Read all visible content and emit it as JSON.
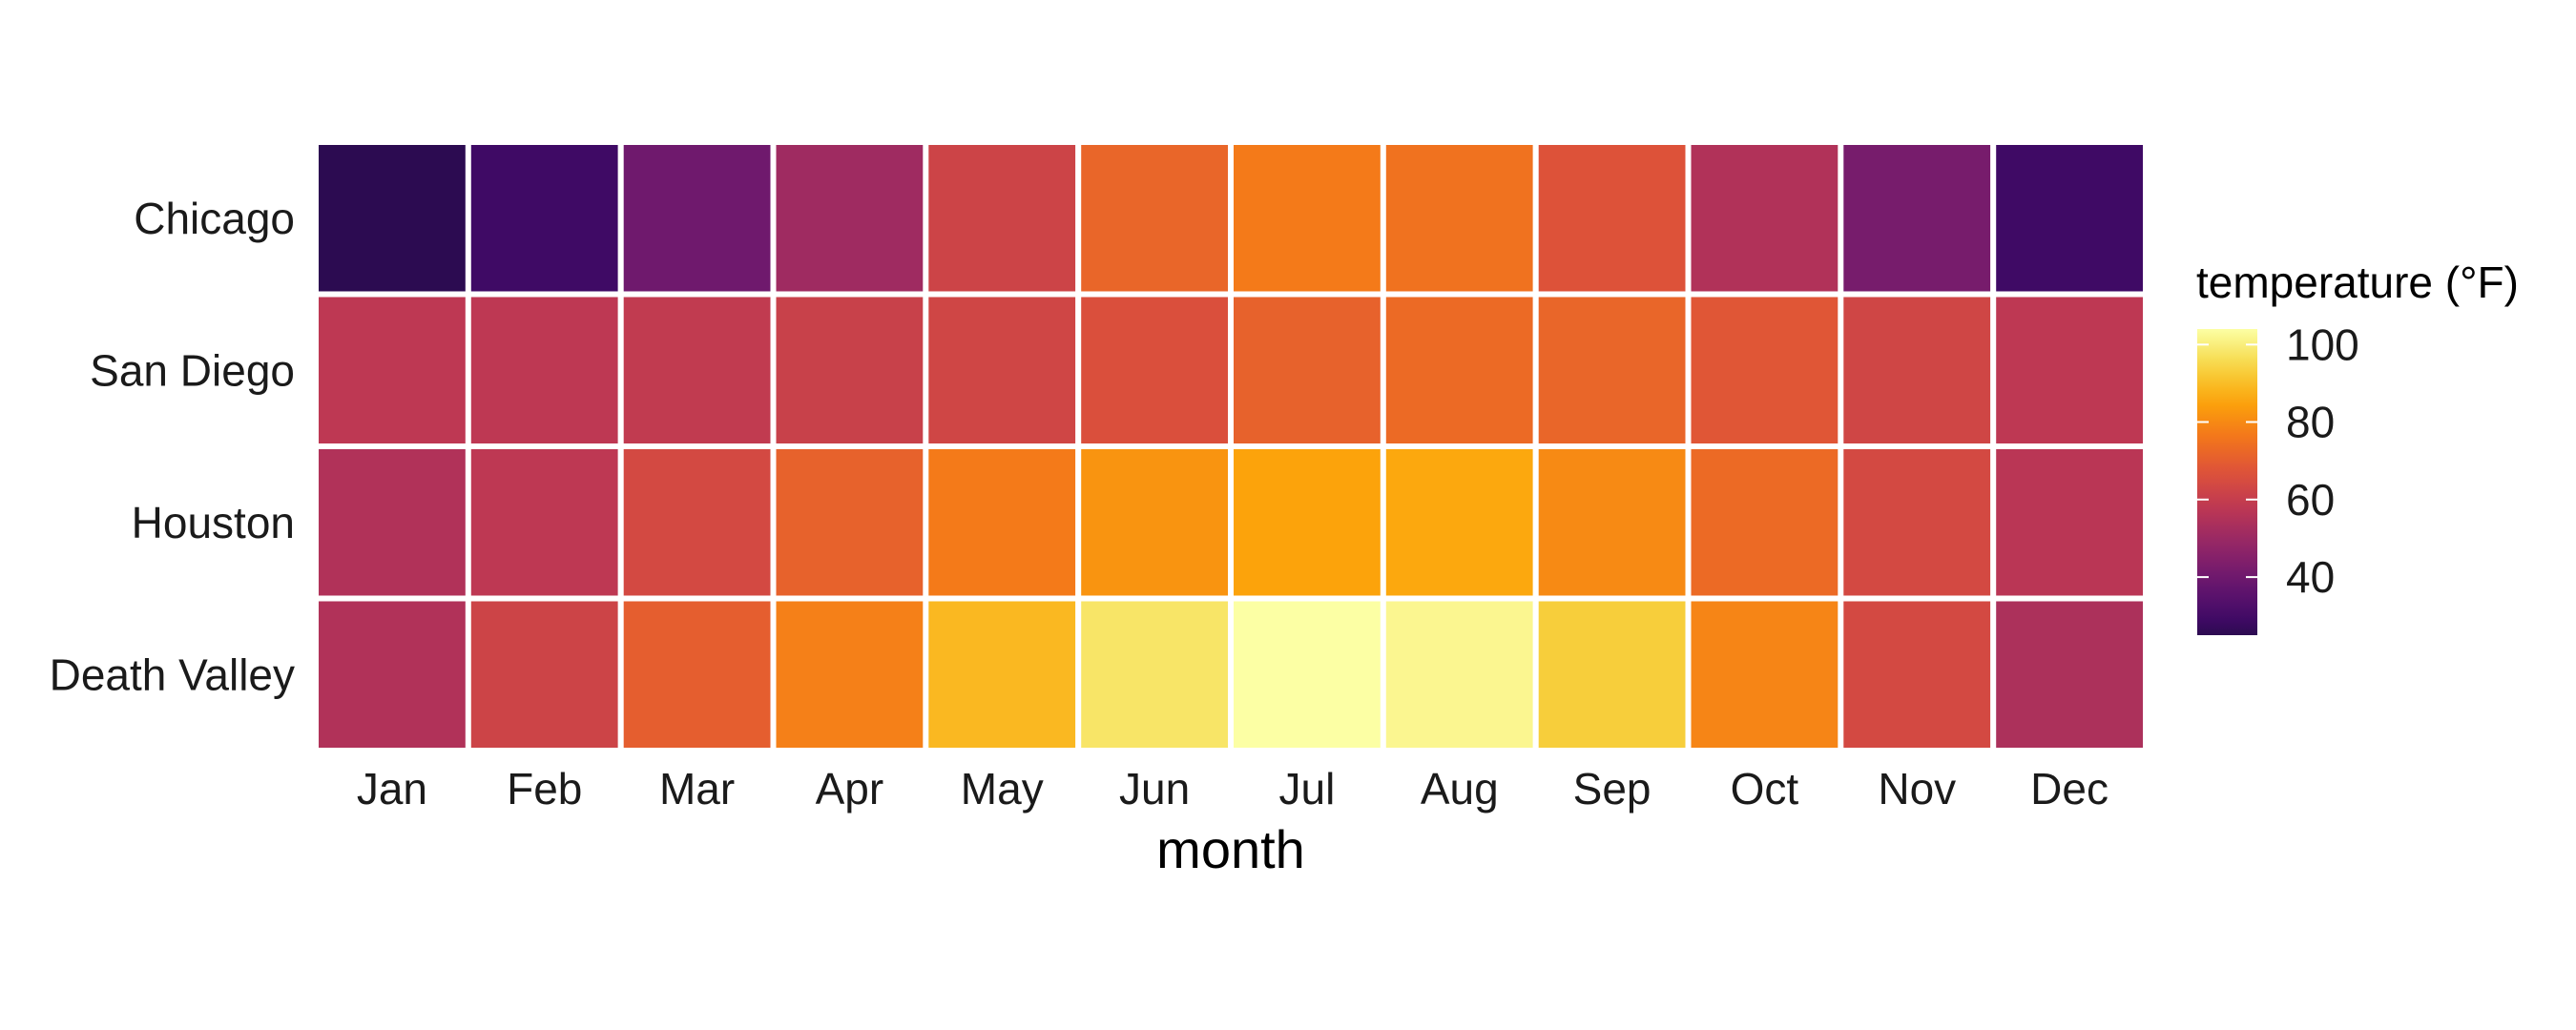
{
  "chart_data": {
    "type": "heatmap",
    "title": "",
    "xlabel": "month",
    "ylabel": "",
    "x_categories": [
      "Jan",
      "Feb",
      "Mar",
      "Apr",
      "May",
      "Jun",
      "Jul",
      "Aug",
      "Sep",
      "Oct",
      "Nov",
      "Dec"
    ],
    "y_categories": [
      "Chicago",
      "San Diego",
      "Houston",
      "Death Valley"
    ],
    "values": [
      [
        25,
        29,
        40,
        51,
        62,
        72,
        77,
        75,
        67,
        55,
        42,
        29
      ],
      [
        58,
        58,
        59,
        61,
        63,
        66,
        71,
        73,
        72,
        68,
        63,
        58
      ],
      [
        55,
        58,
        64,
        71,
        77,
        82,
        85,
        86,
        80,
        73,
        64,
        57
      ],
      [
        55,
        62,
        70,
        78,
        89,
        98,
        104,
        102,
        93,
        79,
        64,
        54
      ]
    ],
    "legend": {
      "title": "temperature (°F)",
      "ticks": [
        40,
        60,
        80,
        100
      ],
      "range": [
        25,
        104
      ],
      "placement": "right"
    },
    "colormap": "inferno",
    "grid": false
  }
}
